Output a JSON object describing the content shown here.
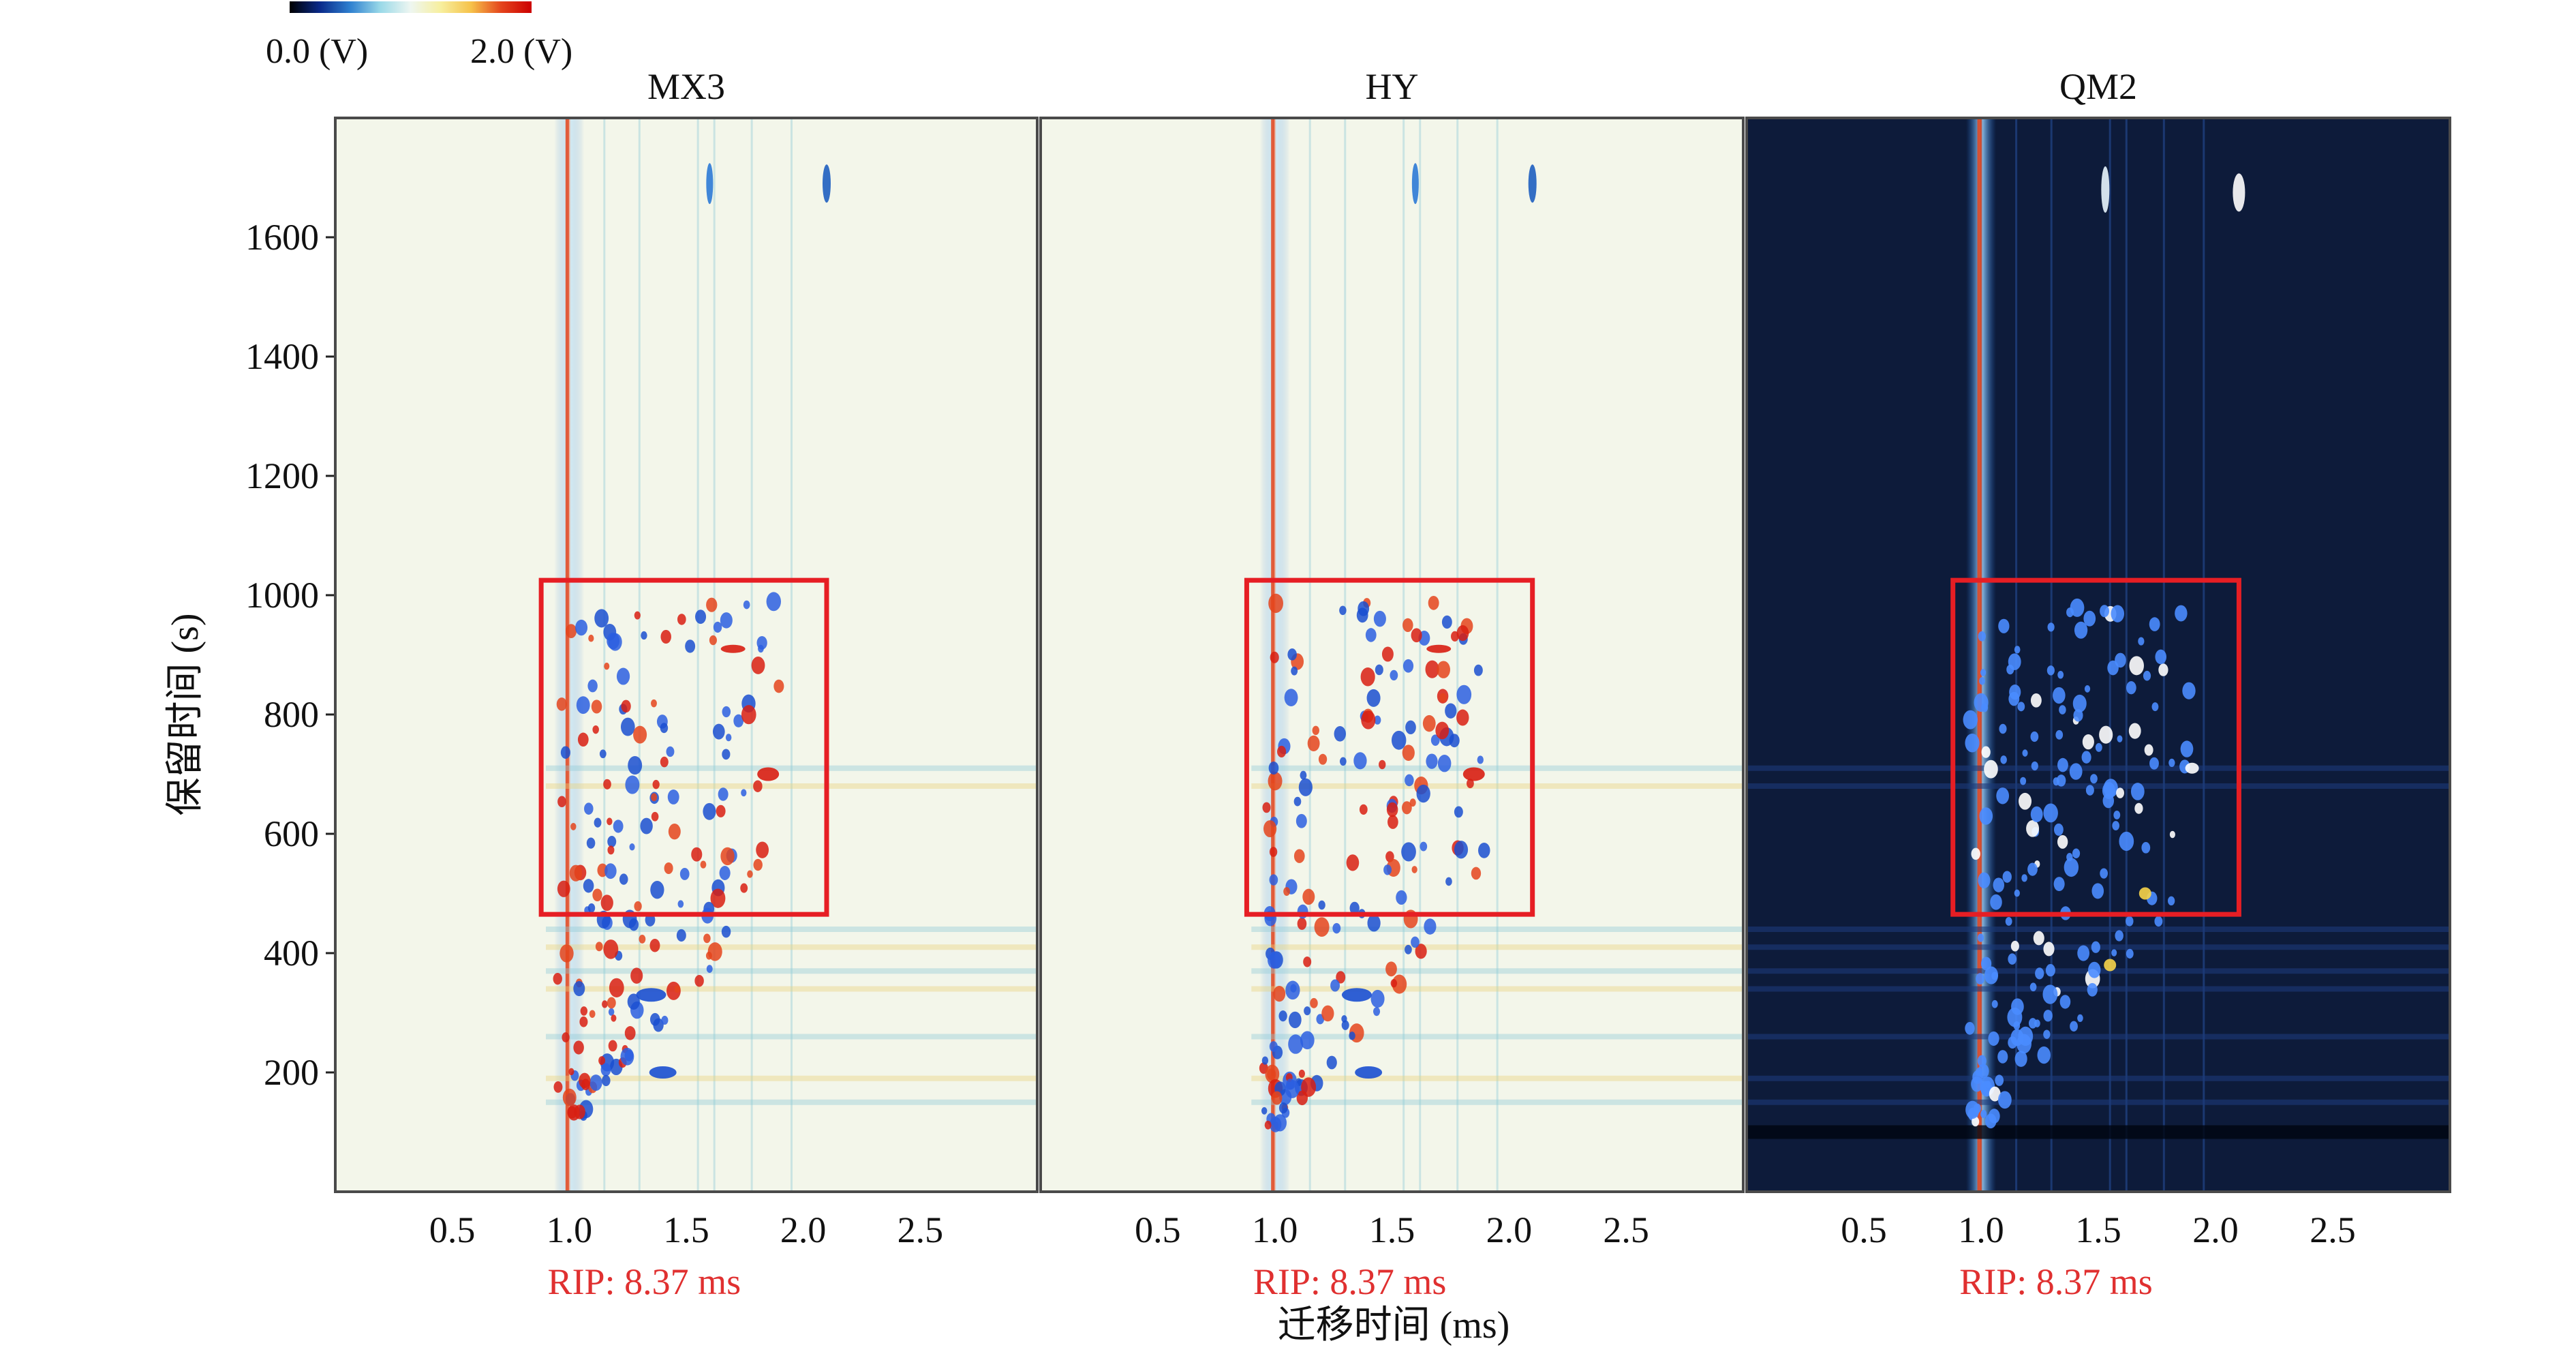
{
  "colorbar": {
    "min_label": "0.0 (V)",
    "max_label": "2.0 (V)",
    "stops": [
      "#000000",
      "#0a2a8a",
      "#2f80d0",
      "#9ad9e8",
      "#eef6f1",
      "#f7ef9e",
      "#f6c24a",
      "#e4441c",
      "#cc0000"
    ]
  },
  "colors": {
    "light_bg": "#f3f6ea",
    "dark_bg": "#0d1b3a",
    "frame": "#4a4a4a",
    "box": "#e61e24",
    "rip_text": "#e03030"
  },
  "chart_data": [
    {
      "type": "heatmap",
      "title": "MX3",
      "xlabel": "迁移时间 (ms)",
      "ylabel": "保留时间 (s)",
      "xlim": [
        0,
        3.0
      ],
      "ylim": [
        0,
        1800
      ],
      "x_ticks": [
        0.5,
        1.0,
        1.5,
        2.0,
        2.5
      ],
      "y_ticks": [
        200,
        400,
        600,
        800,
        1000,
        1200,
        1400,
        1600
      ],
      "annotation": "RIP: 8.37 ms",
      "style": "light",
      "highlight_box": {
        "x": [
          0.88,
          2.1
        ],
        "y": [
          465,
          1025
        ]
      }
    },
    {
      "type": "heatmap",
      "title": "HY",
      "xlabel": "迁移时间 (ms)",
      "xlim": [
        0,
        3.0
      ],
      "ylim": [
        0,
        1800
      ],
      "x_ticks": [
        0.5,
        1.0,
        1.5,
        2.0,
        2.5
      ],
      "annotation": "RIP: 8.37 ms",
      "style": "light",
      "highlight_box": {
        "x": [
          0.88,
          2.1
        ],
        "y": [
          465,
          1025
        ]
      }
    },
    {
      "type": "heatmap",
      "title": "QM2",
      "xlabel": "迁移时间 (ms)",
      "xlim": [
        0,
        3.0
      ],
      "ylim": [
        0,
        1800
      ],
      "x_ticks": [
        0.5,
        1.0,
        1.5,
        2.0,
        2.5
      ],
      "annotation": "RIP: 8.37 ms",
      "style": "dark",
      "highlight_box": {
        "x": [
          0.88,
          2.1
        ],
        "y": [
          465,
          1025
        ]
      }
    }
  ],
  "shared": {
    "ylabel": "保留时间 (s)",
    "xlabel": "迁移时间 (ms)"
  }
}
